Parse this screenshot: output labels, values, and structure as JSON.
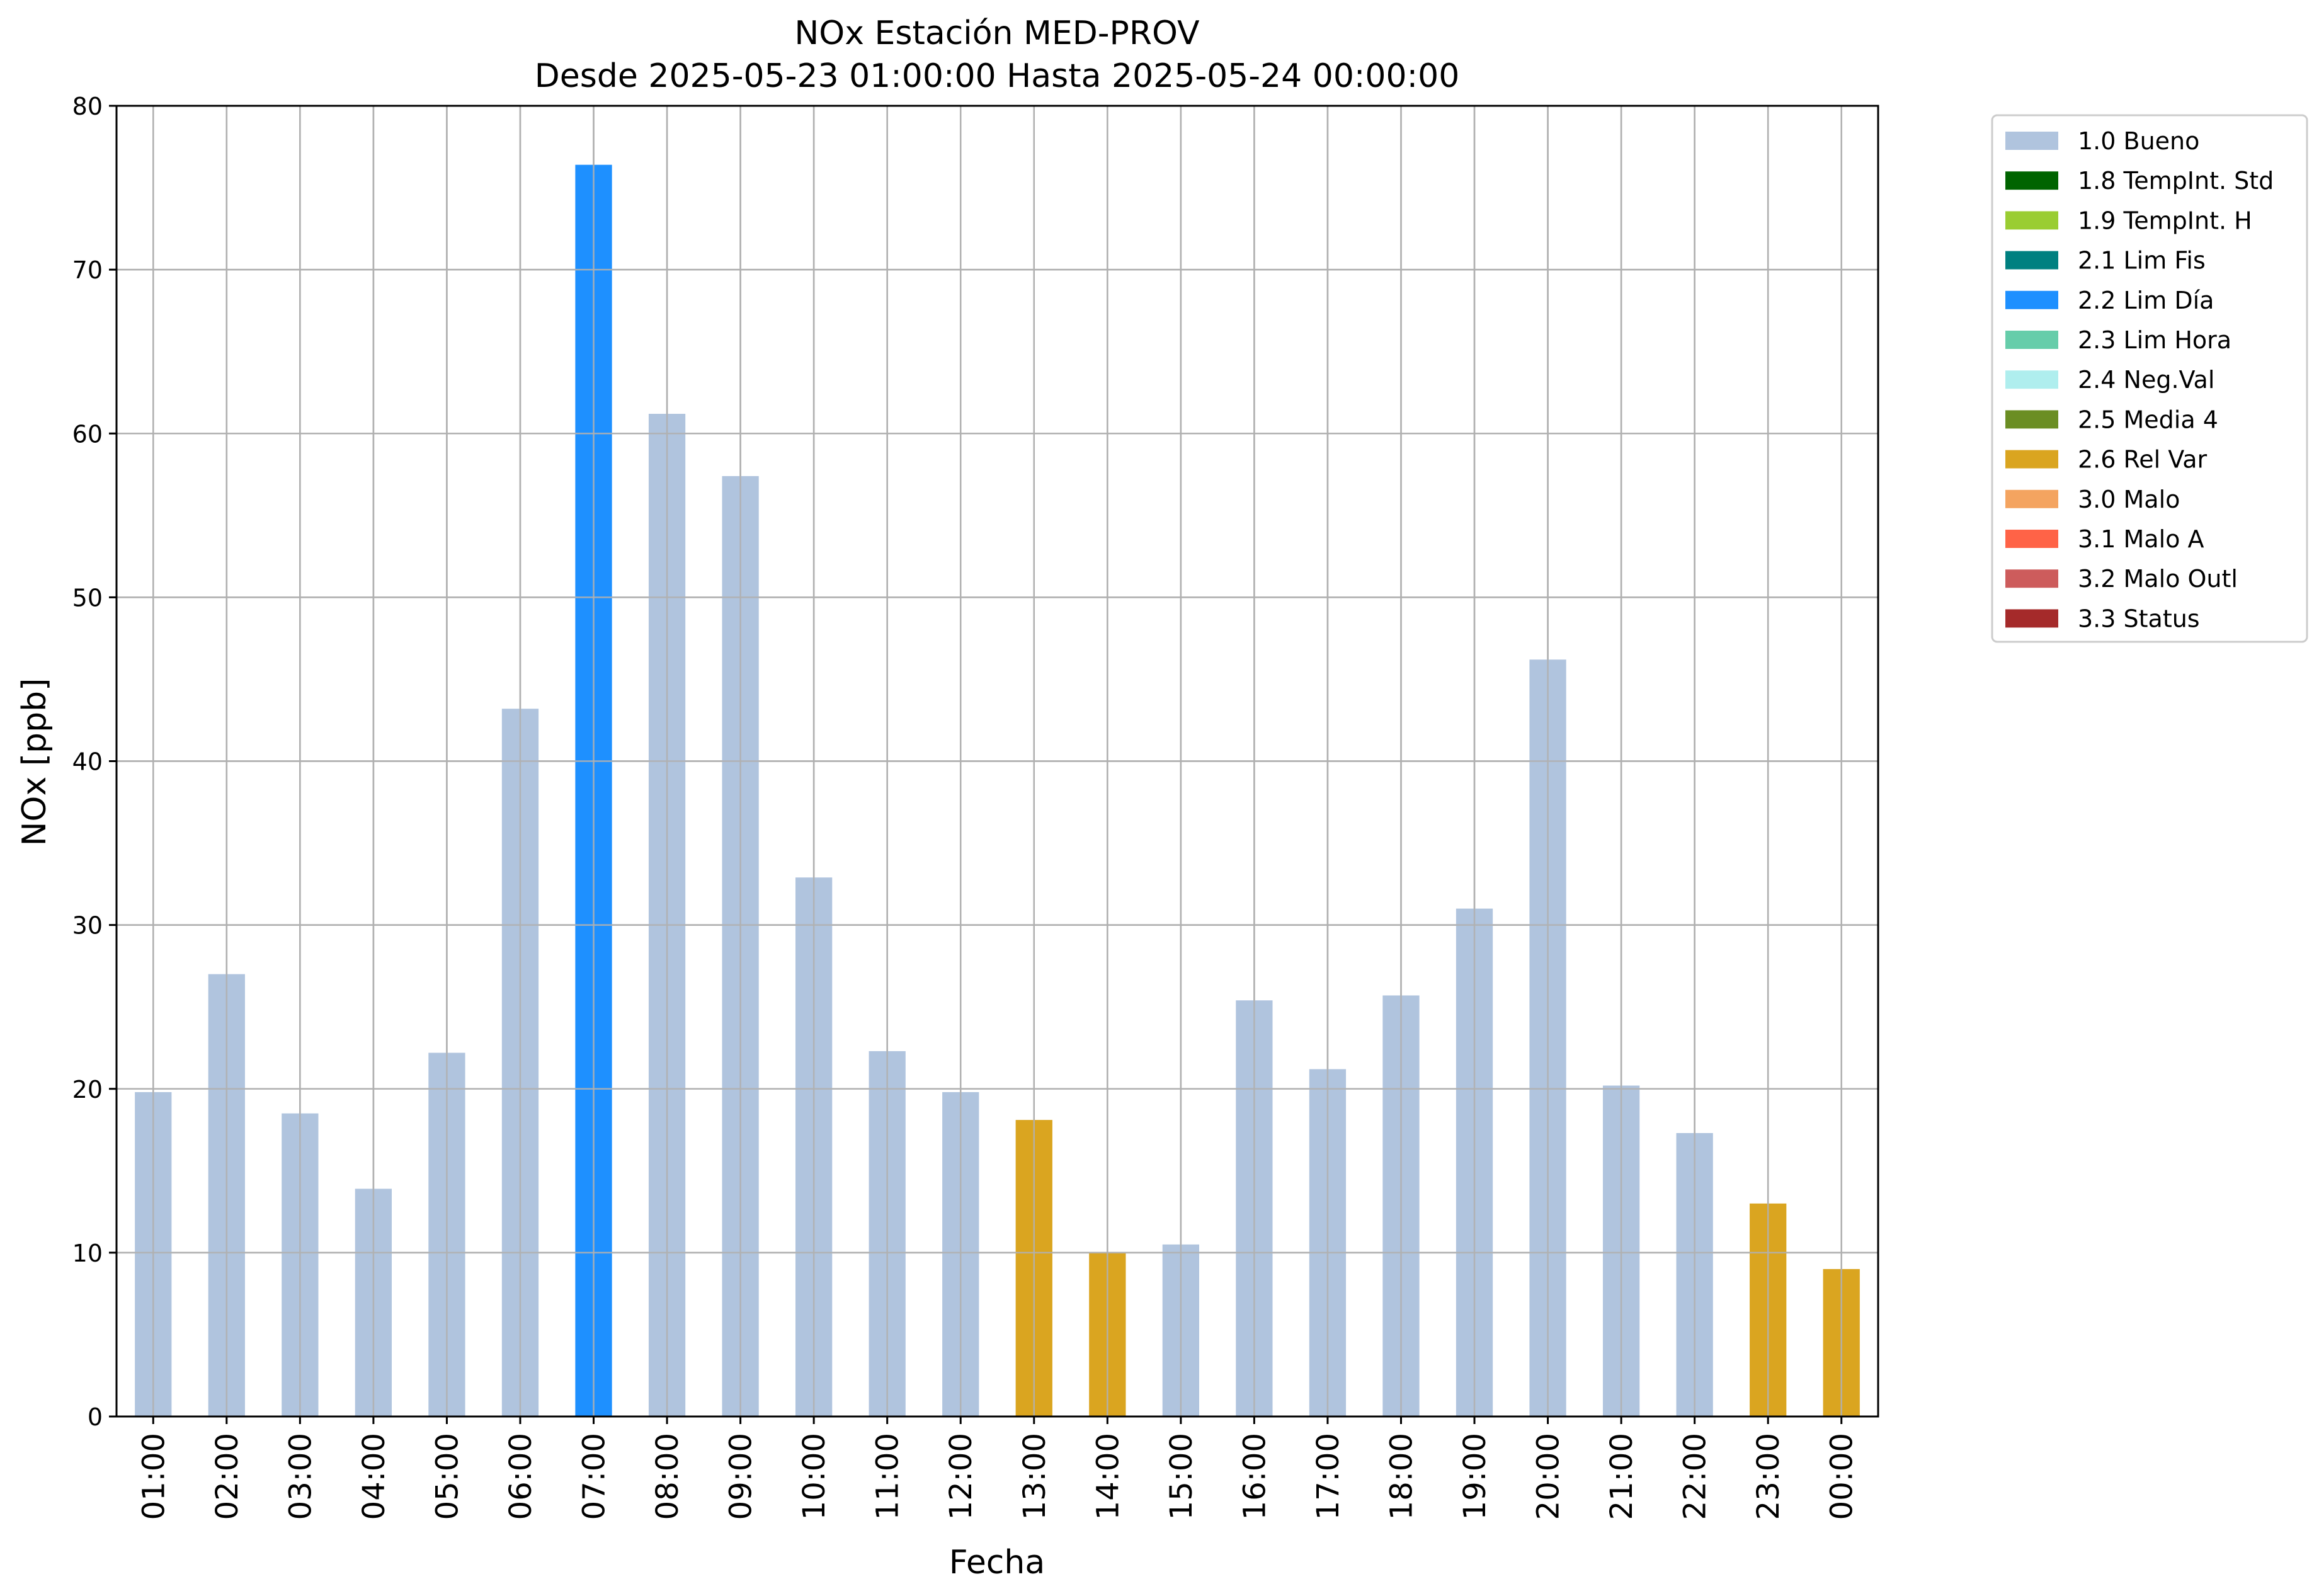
{
  "chart_data": {
    "type": "bar",
    "title": "NOx Estación MED-PROV",
    "subtitle": "Desde 2025-05-23 01:00:00 Hasta 2025-05-24 00:00:00",
    "xlabel": "Fecha",
    "ylabel": "NOx [ppb]",
    "ylim": [
      0,
      80
    ],
    "yticks": [
      0,
      10,
      20,
      30,
      40,
      50,
      60,
      70,
      80
    ],
    "grid": true,
    "legend_position": "outside-top-right",
    "categories": [
      "01:00",
      "02:00",
      "03:00",
      "04:00",
      "05:00",
      "06:00",
      "07:00",
      "08:00",
      "09:00",
      "10:00",
      "11:00",
      "12:00",
      "13:00",
      "14:00",
      "15:00",
      "16:00",
      "17:00",
      "18:00",
      "19:00",
      "20:00",
      "21:00",
      "22:00",
      "23:00",
      "00:00"
    ],
    "values": [
      19.8,
      27.0,
      18.5,
      13.9,
      22.2,
      43.2,
      76.4,
      61.2,
      57.4,
      32.9,
      22.3,
      19.8,
      18.1,
      10.0,
      10.5,
      25.4,
      21.2,
      25.7,
      31.0,
      46.2,
      20.2,
      17.3,
      13.0,
      9.0
    ],
    "bar_quality": [
      "1.0",
      "1.0",
      "1.0",
      "1.0",
      "1.0",
      "1.0",
      "2.2",
      "1.0",
      "1.0",
      "1.0",
      "1.0",
      "1.0",
      "2.6",
      "2.6",
      "1.0",
      "1.0",
      "1.0",
      "1.0",
      "1.0",
      "1.0",
      "1.0",
      "1.0",
      "2.6",
      "2.6"
    ],
    "legend": [
      {
        "code": "1.0",
        "label": "1.0 Bueno",
        "color": "#b0c4de"
      },
      {
        "code": "1.8",
        "label": "1.8 TempInt. Std",
        "color": "#006400"
      },
      {
        "code": "1.9",
        "label": "1.9 TempInt. H",
        "color": "#9acd32"
      },
      {
        "code": "2.1",
        "label": "2.1 Lim Fis",
        "color": "#008080"
      },
      {
        "code": "2.2",
        "label": "2.2 Lim Día",
        "color": "#1e90ff"
      },
      {
        "code": "2.3",
        "label": "2.3 Lim Hora",
        "color": "#66cdaa"
      },
      {
        "code": "2.4",
        "label": "2.4 Neg.Val",
        "color": "#afeeee"
      },
      {
        "code": "2.5",
        "label": "2.5 Media 4",
        "color": "#6b8e23"
      },
      {
        "code": "2.6",
        "label": "2.6 Rel Var",
        "color": "#daa520"
      },
      {
        "code": "3.0",
        "label": "3.0 Malo",
        "color": "#f4a460"
      },
      {
        "code": "3.1",
        "label": "3.1 Malo A",
        "color": "#ff6347"
      },
      {
        "code": "3.2",
        "label": "3.2 Malo Outl",
        "color": "#cd5c5c"
      },
      {
        "code": "3.3",
        "label": "3.3 Status",
        "color": "#a52a2a"
      }
    ]
  }
}
